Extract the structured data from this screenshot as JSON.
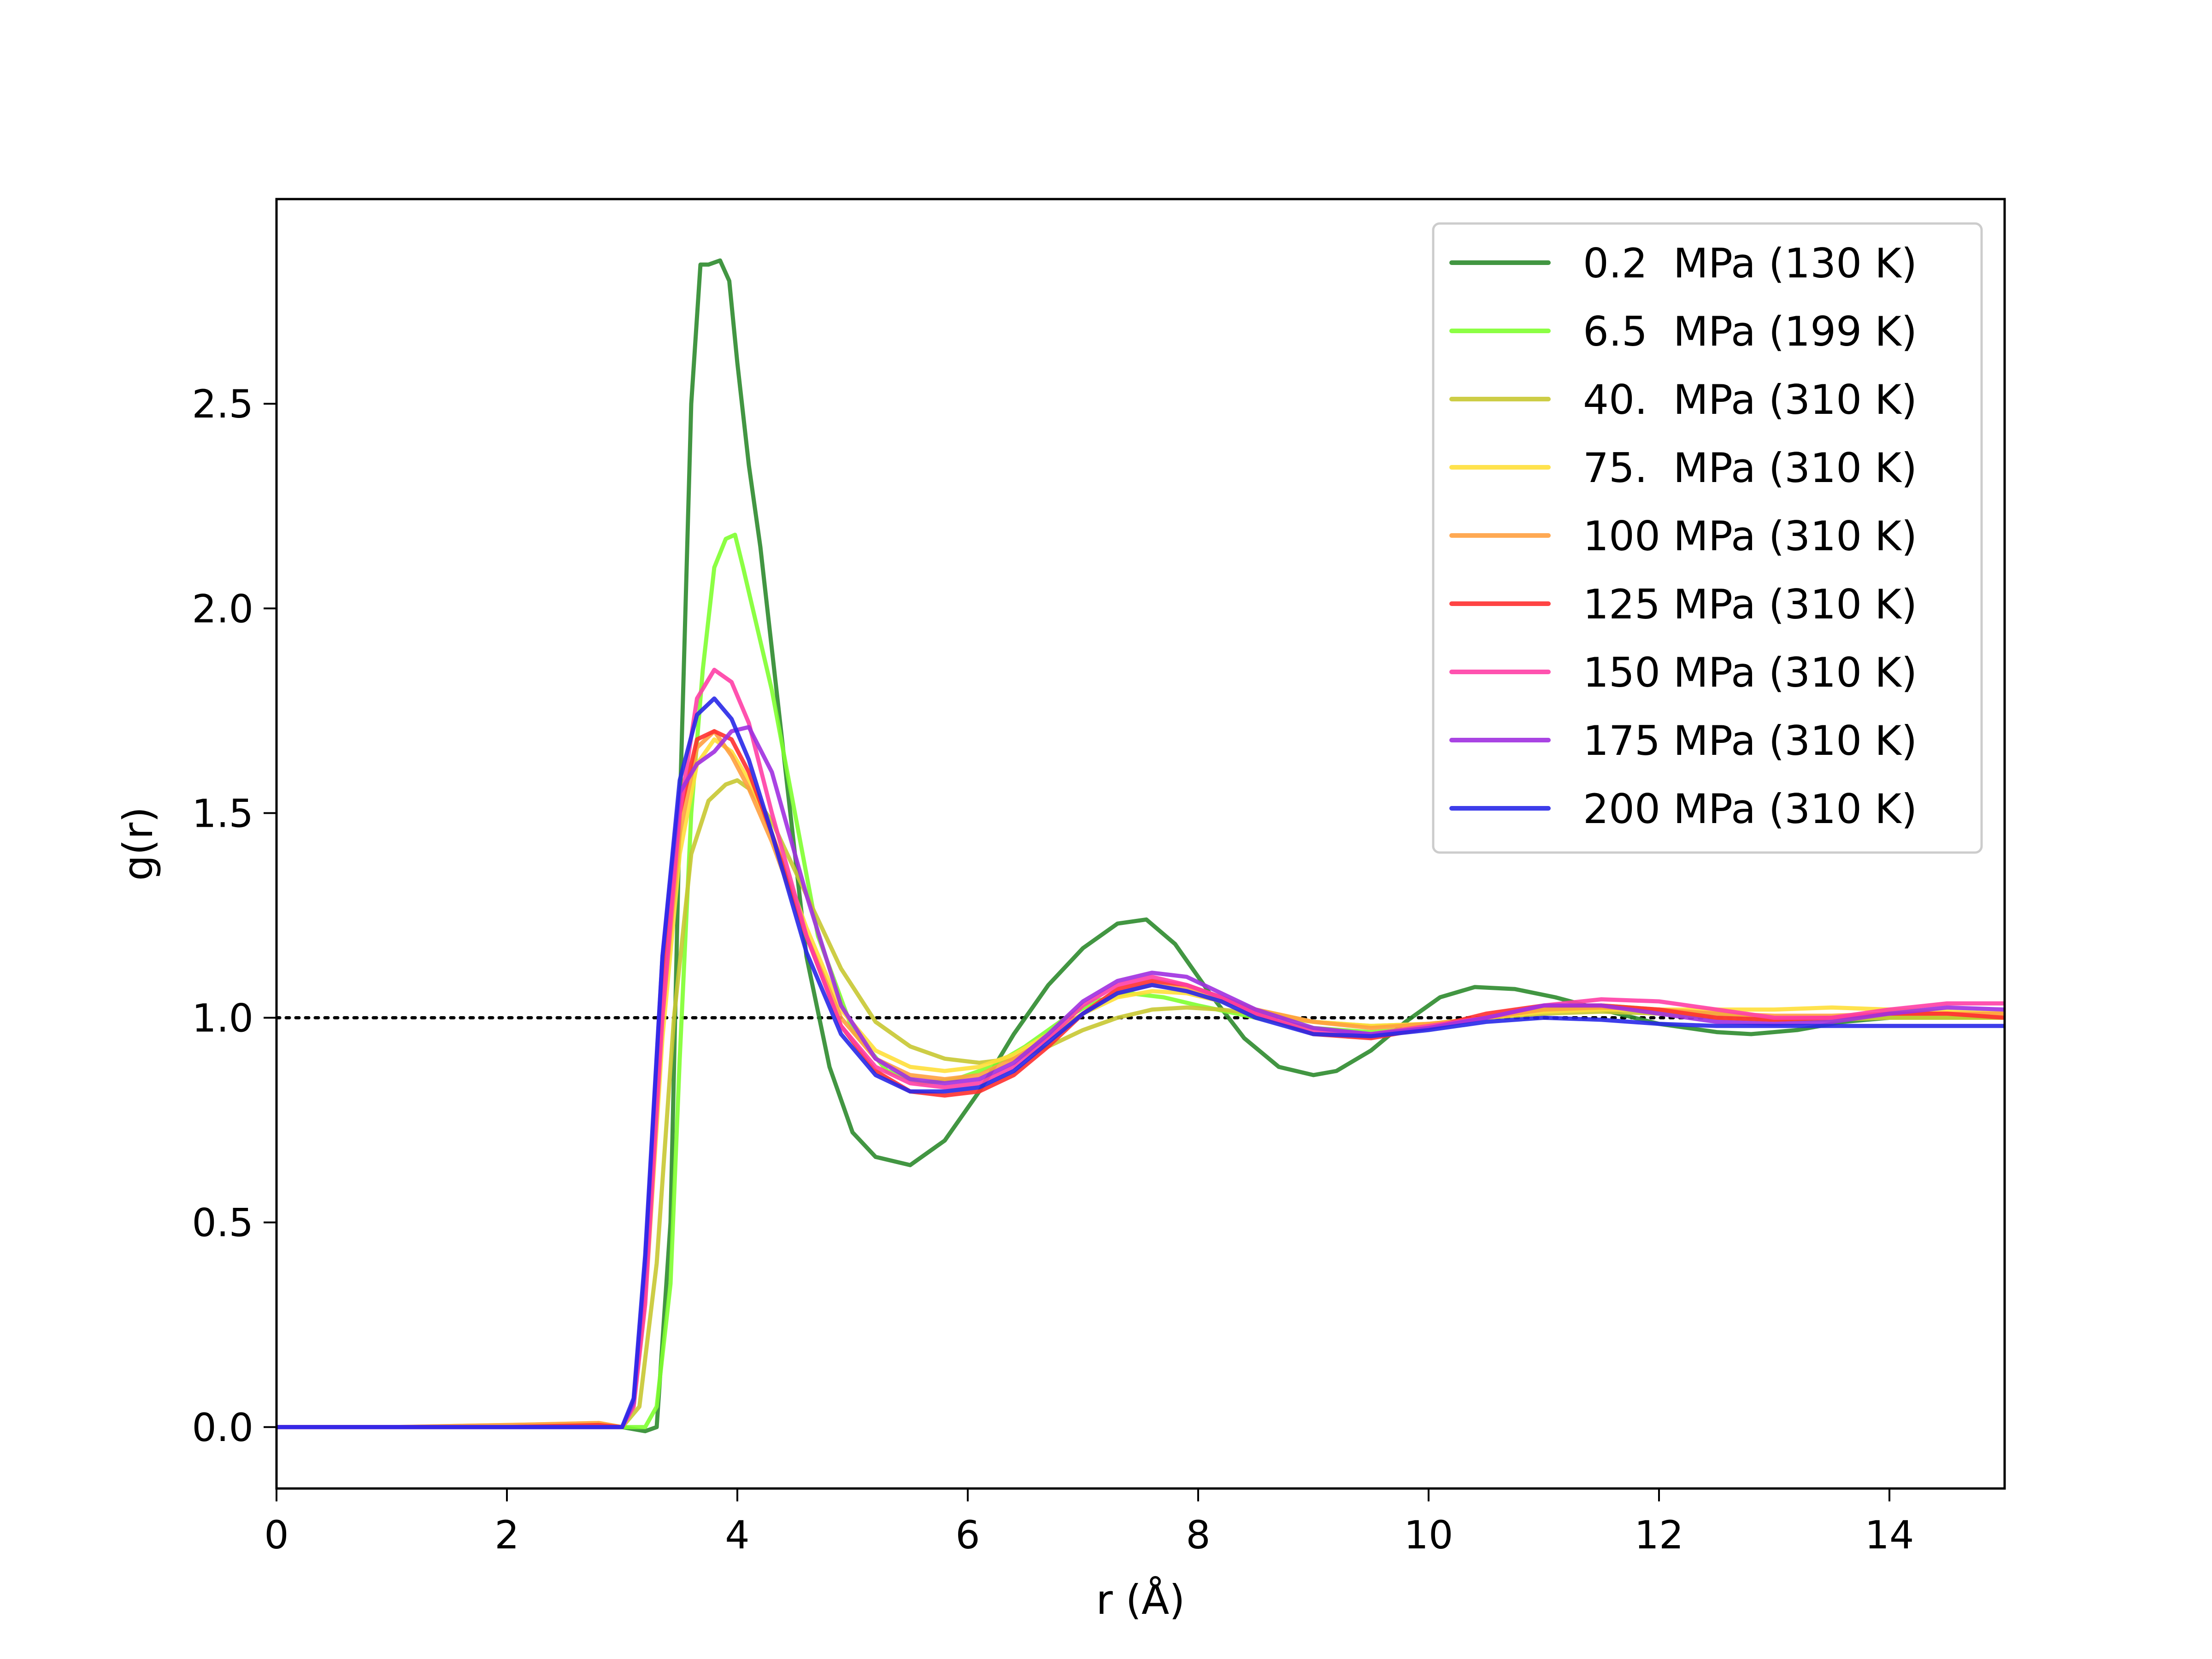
{
  "chart_data": {
    "type": "line",
    "xlabel": "r (Å)",
    "ylabel": "g(r)",
    "xlim": [
      0,
      15
    ],
    "ylim": [
      -0.15,
      3.0
    ],
    "xticks": [
      0,
      2,
      4,
      6,
      8,
      10,
      12,
      14
    ],
    "xtick_labels": [
      "0",
      "2",
      "4",
      "6",
      "8",
      "10",
      "12",
      "14"
    ],
    "yticks": [
      0.0,
      0.5,
      1.0,
      1.5,
      2.0,
      2.5
    ],
    "ytick_labels": [
      "0.0",
      "0.5",
      "1.0",
      "1.5",
      "2.0",
      "2.5"
    ],
    "grid": false,
    "legend_position": "top-right",
    "reference_line": {
      "y": 1.0,
      "style": "dotted",
      "color": "#000000"
    },
    "series": [
      {
        "name": "0.2  MPa (130 K)",
        "color": "#2e8b2e",
        "x": [
          0,
          1,
          2,
          2.8,
          3.0,
          3.2,
          3.3,
          3.42,
          3.5,
          3.6,
          3.68,
          3.75,
          3.85,
          3.93,
          4.0,
          4.1,
          4.2,
          4.4,
          4.6,
          4.8,
          5.0,
          5.2,
          5.5,
          5.8,
          6.1,
          6.4,
          6.7,
          7.0,
          7.3,
          7.55,
          7.8,
          8.1,
          8.4,
          8.7,
          9.0,
          9.2,
          9.5,
          9.8,
          10.1,
          10.4,
          10.75,
          11.1,
          11.5,
          12.0,
          12.5,
          12.8,
          13.2,
          13.6,
          14.0,
          14.5,
          15.0
        ],
        "y": [
          0,
          0,
          0,
          0,
          0,
          -0.01,
          0,
          0.5,
          1.5,
          2.5,
          2.84,
          2.84,
          2.85,
          2.8,
          2.6,
          2.35,
          2.15,
          1.65,
          1.15,
          0.88,
          0.72,
          0.66,
          0.64,
          0.7,
          0.82,
          0.96,
          1.08,
          1.17,
          1.23,
          1.24,
          1.18,
          1.06,
          0.95,
          0.88,
          0.86,
          0.87,
          0.92,
          0.99,
          1.05,
          1.075,
          1.07,
          1.05,
          1.02,
          0.985,
          0.965,
          0.96,
          0.97,
          0.99,
          1.0,
          1.0,
          1.0
        ]
      },
      {
        "name": "6.5  MPa (199 K)",
        "color": "#80ff30",
        "x": [
          0,
          1,
          2,
          2.8,
          3.0,
          3.2,
          3.3,
          3.42,
          3.5,
          3.6,
          3.7,
          3.8,
          3.9,
          3.98,
          4.05,
          4.15,
          4.3,
          4.5,
          4.7,
          5.0,
          5.3,
          5.6,
          5.9,
          6.2,
          6.5,
          6.8,
          7.1,
          7.4,
          7.7,
          8.0,
          8.5,
          9.0,
          9.5,
          10.0,
          10.5,
          11.0,
          11.5,
          12.0,
          12.5,
          13.0,
          13.5,
          14.0,
          14.5,
          15.0
        ],
        "y": [
          0,
          0,
          0,
          0,
          0,
          0,
          0.05,
          0.35,
          0.9,
          1.5,
          1.85,
          2.1,
          2.17,
          2.18,
          2.1,
          1.98,
          1.8,
          1.5,
          1.2,
          0.97,
          0.87,
          0.84,
          0.85,
          0.88,
          0.93,
          0.99,
          1.04,
          1.06,
          1.05,
          1.03,
          1.0,
          0.975,
          0.965,
          0.975,
          1.0,
          1.02,
          1.03,
          1.02,
          1.01,
          1.0,
          1.0,
          1.0,
          1.0,
          1.0
        ]
      },
      {
        "name": "40.  MPa (310 K)",
        "color": "#c8c832",
        "x": [
          0,
          1,
          2,
          2.8,
          3.0,
          3.15,
          3.3,
          3.45,
          3.6,
          3.75,
          3.9,
          4.0,
          4.1,
          4.3,
          4.6,
          4.9,
          5.2,
          5.5,
          5.8,
          6.1,
          6.4,
          6.7,
          7.0,
          7.3,
          7.6,
          7.9,
          8.2,
          8.5,
          9.0,
          9.5,
          10.0,
          10.5,
          11.0,
          11.5,
          12.0,
          12.5,
          13.0,
          13.5,
          14.0,
          14.5,
          15.0
        ],
        "y": [
          0,
          0,
          0,
          0,
          0,
          0.05,
          0.4,
          1.0,
          1.4,
          1.53,
          1.57,
          1.58,
          1.56,
          1.48,
          1.3,
          1.12,
          0.99,
          0.93,
          0.9,
          0.89,
          0.9,
          0.93,
          0.97,
          1.0,
          1.02,
          1.025,
          1.02,
          1.01,
          0.99,
          0.98,
          0.985,
          1.0,
          1.01,
          1.015,
          1.01,
          1.0,
          0.995,
          0.995,
          1.0,
          1.0,
          1.0
        ]
      },
      {
        "name": "75.  MPa (310 K)",
        "color": "#ffdf3a",
        "x": [
          0,
          1,
          2,
          2.8,
          3.0,
          3.1,
          3.2,
          3.35,
          3.5,
          3.65,
          3.8,
          3.95,
          4.1,
          4.3,
          4.6,
          4.9,
          5.2,
          5.5,
          5.8,
          6.1,
          6.4,
          6.7,
          7.0,
          7.3,
          7.6,
          7.9,
          8.2,
          8.5,
          9.0,
          9.5,
          10.0,
          10.5,
          11.0,
          11.5,
          12.0,
          12.5,
          13.0,
          13.5,
          14.0,
          14.5,
          15.0
        ],
        "y": [
          0,
          0,
          0.005,
          0.01,
          0,
          0.05,
          0.3,
          0.95,
          1.4,
          1.62,
          1.68,
          1.65,
          1.58,
          1.45,
          1.22,
          1.02,
          0.92,
          0.88,
          0.87,
          0.88,
          0.91,
          0.96,
          1.01,
          1.05,
          1.065,
          1.06,
          1.04,
          1.02,
          0.99,
          0.98,
          0.985,
          1.0,
          1.015,
          1.02,
          1.02,
          1.02,
          1.02,
          1.025,
          1.02,
          1.015,
          1.01
        ]
      },
      {
        "name": "100 MPa (310 K)",
        "color": "#ffa040",
        "x": [
          0,
          1,
          2,
          2.8,
          3.0,
          3.1,
          3.2,
          3.35,
          3.5,
          3.65,
          3.8,
          3.95,
          4.1,
          4.3,
          4.6,
          4.9,
          5.2,
          5.5,
          5.8,
          6.1,
          6.4,
          6.7,
          7.0,
          7.3,
          7.6,
          7.9,
          8.2,
          8.5,
          9.0,
          9.5,
          10.0,
          10.5,
          11.0,
          11.5,
          12.0,
          12.5,
          13.0,
          13.5,
          14.0,
          14.5,
          15.0
        ],
        "y": [
          0,
          0,
          0.005,
          0.01,
          0,
          0.06,
          0.32,
          1.0,
          1.45,
          1.66,
          1.7,
          1.64,
          1.56,
          1.43,
          1.2,
          1.0,
          0.9,
          0.86,
          0.85,
          0.86,
          0.9,
          0.95,
          1.01,
          1.06,
          1.08,
          1.07,
          1.05,
          1.02,
          0.99,
          0.975,
          0.985,
          1.0,
          1.02,
          1.025,
          1.02,
          1.01,
          1.005,
          1.005,
          1.01,
          1.01,
          1.01
        ]
      },
      {
        "name": "125 MPa (310 K)",
        "color": "#ff3030",
        "x": [
          0,
          1,
          2,
          2.8,
          3.0,
          3.1,
          3.2,
          3.35,
          3.5,
          3.65,
          3.8,
          3.95,
          4.1,
          4.3,
          4.6,
          4.9,
          5.2,
          5.5,
          5.8,
          6.1,
          6.4,
          6.7,
          7.0,
          7.3,
          7.6,
          7.9,
          8.2,
          8.5,
          9.0,
          9.5,
          10.0,
          10.5,
          11.0,
          11.5,
          12.0,
          12.5,
          13.0,
          13.5,
          14.0,
          14.5,
          15.0
        ],
        "y": [
          0,
          0,
          0,
          0.005,
          0,
          0.06,
          0.35,
          1.05,
          1.5,
          1.68,
          1.7,
          1.68,
          1.6,
          1.45,
          1.2,
          0.98,
          0.87,
          0.82,
          0.81,
          0.82,
          0.86,
          0.93,
          1.01,
          1.07,
          1.09,
          1.08,
          1.05,
          1.01,
          0.96,
          0.95,
          0.975,
          1.01,
          1.03,
          1.03,
          1.02,
          1.0,
          0.995,
          1.0,
          1.01,
          1.01,
          1.0
        ]
      },
      {
        "name": "150 MPa (310 K)",
        "color": "#ff3fa6",
        "x": [
          0,
          1,
          2,
          2.8,
          3.0,
          3.1,
          3.2,
          3.35,
          3.5,
          3.65,
          3.8,
          3.95,
          4.1,
          4.3,
          4.6,
          4.9,
          5.2,
          5.5,
          5.8,
          6.1,
          6.4,
          6.7,
          7.0,
          7.3,
          7.6,
          7.9,
          8.2,
          8.5,
          9.0,
          9.5,
          10.0,
          10.5,
          11.0,
          11.5,
          12.0,
          12.5,
          13.0,
          13.5,
          14.0,
          14.5,
          15.0
        ],
        "y": [
          0,
          0,
          0,
          0,
          0,
          0.05,
          0.3,
          1.0,
          1.5,
          1.78,
          1.85,
          1.82,
          1.72,
          1.5,
          1.2,
          0.98,
          0.88,
          0.84,
          0.83,
          0.84,
          0.88,
          0.95,
          1.03,
          1.08,
          1.1,
          1.08,
          1.05,
          1.01,
          0.97,
          0.96,
          0.98,
          1.0,
          1.03,
          1.045,
          1.04,
          1.02,
          1.0,
          1.0,
          1.02,
          1.035,
          1.035
        ]
      },
      {
        "name": "175 MPa (310 K)",
        "color": "#a030e0",
        "x": [
          0,
          1,
          2,
          2.8,
          3.0,
          3.1,
          3.2,
          3.35,
          3.5,
          3.65,
          3.8,
          3.95,
          4.1,
          4.3,
          4.6,
          4.9,
          5.2,
          5.5,
          5.8,
          6.1,
          6.4,
          6.7,
          7.0,
          7.3,
          7.6,
          7.9,
          8.2,
          8.5,
          9.0,
          9.5,
          10.0,
          10.5,
          11.0,
          11.5,
          12.0,
          12.5,
          13.0,
          13.5,
          14.0,
          14.5,
          15.0
        ],
        "y": [
          0,
          0,
          0,
          0,
          0,
          0.06,
          0.4,
          1.15,
          1.55,
          1.62,
          1.65,
          1.7,
          1.71,
          1.6,
          1.3,
          1.03,
          0.9,
          0.85,
          0.84,
          0.85,
          0.89,
          0.96,
          1.04,
          1.09,
          1.11,
          1.1,
          1.06,
          1.02,
          0.975,
          0.96,
          0.975,
          1.0,
          1.03,
          1.03,
          1.01,
          0.99,
          0.985,
          0.99,
          1.01,
          1.025,
          1.02
        ]
      },
      {
        "name": "200 MPa (310 K)",
        "color": "#2828e8",
        "x": [
          0,
          1,
          2,
          2.8,
          3.0,
          3.1,
          3.2,
          3.35,
          3.5,
          3.65,
          3.8,
          3.95,
          4.1,
          4.3,
          4.6,
          4.9,
          5.2,
          5.5,
          5.8,
          6.1,
          6.4,
          6.7,
          7.0,
          7.3,
          7.6,
          7.9,
          8.2,
          8.5,
          9.0,
          9.5,
          10.0,
          10.5,
          11.0,
          11.5,
          12.0,
          12.5,
          13.0,
          13.5,
          14.0,
          14.5,
          15.0
        ],
        "y": [
          0,
          0,
          0,
          0,
          0,
          0.07,
          0.42,
          1.15,
          1.58,
          1.74,
          1.78,
          1.73,
          1.63,
          1.45,
          1.16,
          0.96,
          0.86,
          0.82,
          0.82,
          0.83,
          0.87,
          0.94,
          1.01,
          1.06,
          1.08,
          1.065,
          1.04,
          1.0,
          0.96,
          0.955,
          0.97,
          0.99,
          1.0,
          0.995,
          0.985,
          0.98,
          0.98,
          0.98,
          0.98,
          0.98,
          0.98
        ]
      }
    ]
  }
}
